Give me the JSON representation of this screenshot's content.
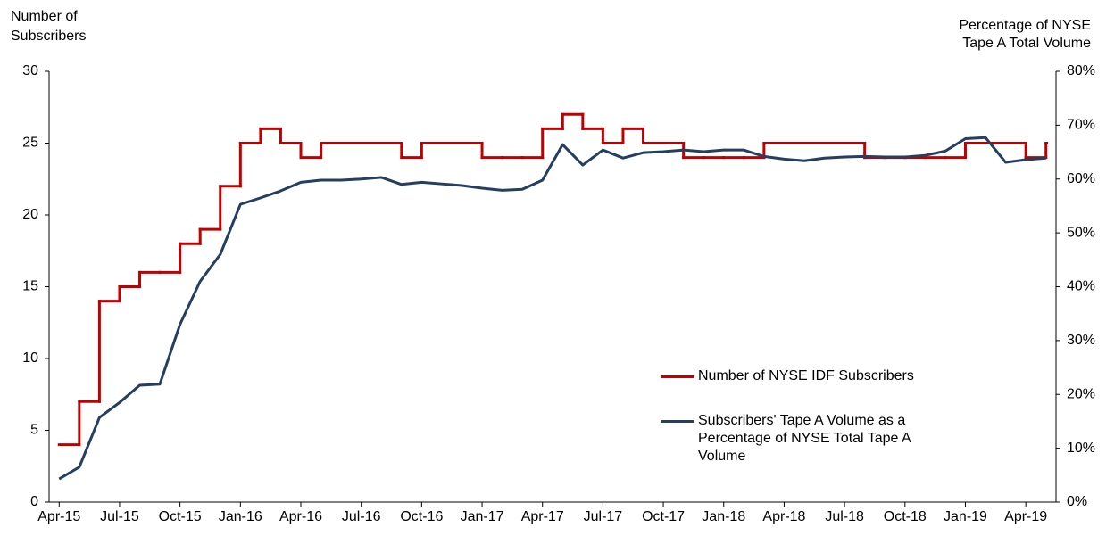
{
  "chart_data": {
    "type": "line",
    "ylabel": [
      "Number of",
      "Subscribers"
    ],
    "y2label": [
      "Percentage of NYSE",
      "Tape A Total Volume"
    ],
    "categories": [
      "Apr-15",
      null,
      null,
      "Jul-15",
      null,
      null,
      "Oct-15",
      null,
      null,
      "Jan-16",
      null,
      null,
      "Apr-16",
      null,
      null,
      "Jul-16",
      null,
      null,
      "Oct-16",
      null,
      null,
      "Jan-17",
      null,
      null,
      "Apr-17",
      null,
      null,
      "Jul-17",
      null,
      null,
      "Oct-17",
      null,
      null,
      "Jan-18",
      null,
      null,
      "Apr-18",
      null,
      null,
      "Jul-18",
      null,
      null,
      "Oct-18",
      null,
      null,
      "Jan-19",
      null,
      null,
      "Apr-19",
      null
    ],
    "ylim": [
      0,
      30
    ],
    "yticks": [
      0,
      5,
      10,
      15,
      20,
      25,
      30
    ],
    "y2lim": [
      0,
      80
    ],
    "y2ticks": [
      {
        "value": 0,
        "label": "0%"
      },
      {
        "value": 10,
        "label": "10%"
      },
      {
        "value": 20,
        "label": "20%"
      },
      {
        "value": 30,
        "label": "30%"
      },
      {
        "value": 40,
        "label": "40%"
      },
      {
        "value": 50,
        "label": "50%"
      },
      {
        "value": 60,
        "label": "60%"
      },
      {
        "value": 70,
        "label": "70%"
      },
      {
        "value": 80,
        "label": "80%"
      }
    ],
    "grid": false,
    "series": [
      {
        "name": "Number of NYSE IDF Subscribers",
        "color": "#c00000",
        "step": true,
        "values": [
          4,
          7,
          14,
          15,
          16,
          16,
          18,
          19,
          22,
          25,
          26,
          25,
          24,
          25,
          25,
          25,
          25,
          24,
          25,
          25,
          25,
          24,
          24,
          24,
          26,
          27,
          26,
          25,
          26,
          25,
          25,
          24,
          24,
          24,
          24,
          25,
          25,
          25,
          25,
          25,
          24,
          24,
          24,
          24,
          24,
          25,
          25,
          25,
          24,
          25
        ]
      },
      {
        "name": "Subscribers' Tape A Volume as a Percentage of NYSE Total Tape A Volume",
        "color": "#243f60",
        "axis": "y2",
        "values": [
          4.3,
          6.5,
          15.7,
          18.5,
          21.7,
          21.9,
          33,
          41,
          46,
          55.3,
          56.5,
          57.8,
          59.4,
          59.8,
          59.8,
          60,
          60.3,
          59,
          59.4,
          59.1,
          58.8,
          58.3,
          57.9,
          58.1,
          59.8,
          66.4,
          62.6,
          65.4,
          63.9,
          64.9,
          65.1,
          65.4,
          65.1,
          65.4,
          65.4,
          64.2,
          63.7,
          63.4,
          63.9,
          64.1,
          64.2,
          64.1,
          64.1,
          64.4,
          65.2,
          67.5,
          67.7,
          63.1,
          63.6,
          63.9
        ]
      }
    ]
  }
}
